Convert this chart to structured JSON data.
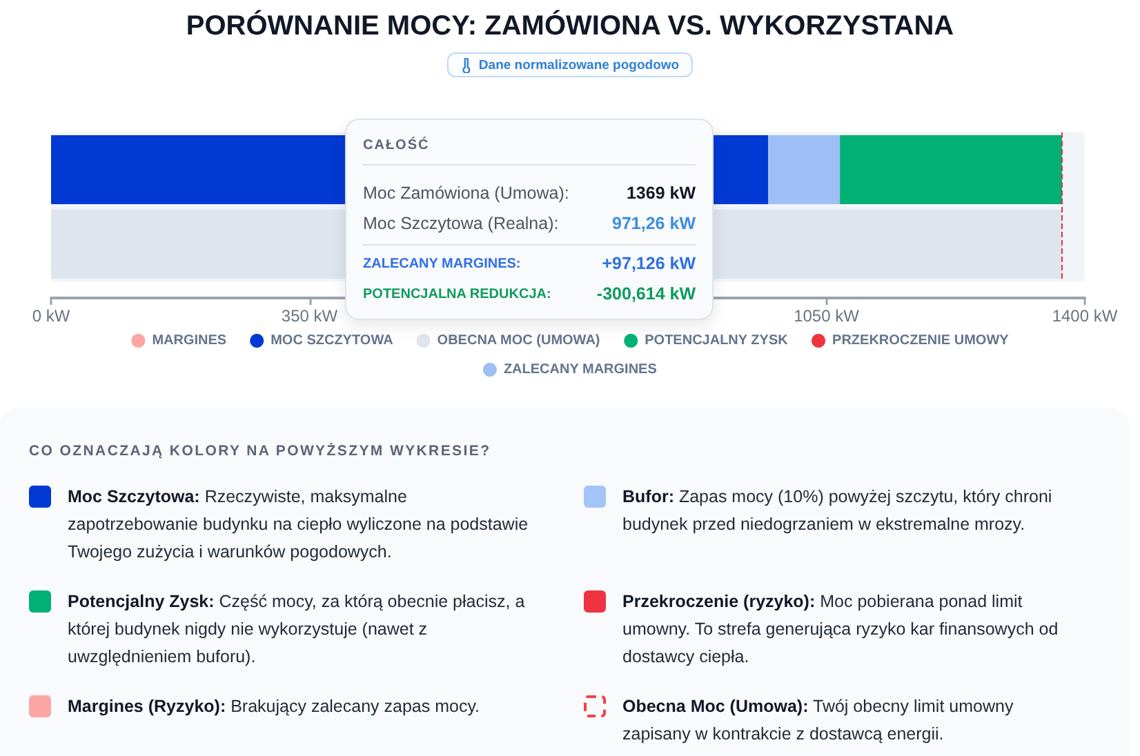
{
  "chart_data": [
    {
      "type": "bar",
      "title": "PORÓWNANIE MOCY: ZAMÓWIONA VS. WYKORZYSTANA",
      "subtitle": "Dane normalizowane pogodowo",
      "orientation": "horizontal",
      "stacked": true,
      "categories": [
        null,
        null
      ],
      "series": [
        {
          "name": "MARGINES",
          "color": "#fca5a5",
          "values": [
            null,
            null
          ]
        },
        {
          "name": "MOC SZCZYTOWA",
          "color": "#0039d4",
          "values": [
            971.26,
            null
          ]
        },
        {
          "name": "OBECNA MOC (UMOWA)",
          "color": "#dfe5ed",
          "values": [
            null,
            1369
          ]
        },
        {
          "name": "ZALECANY MARGINES",
          "color": "#9dbff5",
          "values": [
            97.126,
            null
          ]
        },
        {
          "name": "POTENCJALNY ZYSK",
          "color": "#00b074",
          "values": [
            300.614,
            null
          ]
        },
        {
          "name": "PRZEKROCZENIE UMOWY",
          "color": "#ef3340",
          "values": [
            null,
            null
          ]
        }
      ],
      "xlim": [
        0,
        1400
      ],
      "xticks": [
        {
          "value": 0,
          "label": "0 kW"
        },
        {
          "value": 350,
          "label": "350 kW"
        },
        {
          "value": 1050,
          "label": "1050 kW"
        },
        {
          "value": 1400,
          "label": "1400 kW"
        }
      ],
      "ref_lines": [
        {
          "axis": "x",
          "value": 1369,
          "color": "#e0303a",
          "line_style": "dashed"
        }
      ],
      "legend": "bottom",
      "annotations": [
        "CAŁOŚĆ",
        "Moc Zamówiona (Umowa):",
        "1369 kW",
        "Moc Szczytowa (Realna):",
        "971,26 kW",
        "ZALECANY MARGINES:",
        "+97,126 kW",
        "POTENCJALNA REDUKCJA:",
        "-300,614 kW"
      ]
    },
    {
      "type": "other",
      "title": "CO OZNACZAJĄ KOLORY NA POWYŻSZYM WYKRESIE?",
      "annotations": [
        "Moc Szczytowa: Rzeczywiste, maksymalne zapotrzebowanie budynku na ciepło wyliczone na podstawie Twojego zużycia i warunków pogodowych.",
        "Bufor: Zapas mocy (10%) powyżej szczytu, który chroni budynek przed niedogrzaniem w ekstremalne mrozy.",
        "Potencjalny Zysk: Część mocy, za którą obecnie płacisz, a której budynek nigdy nie wykorzystuje (nawet z uwzględnieniem buforu).",
        "Przekroczenie (ryzyko): Moc pobierana ponad limit umowny. To strefa generująca ryzyko kar finansowych od dostawcy ciepła.",
        "Margines (Ryzyko): Brakujący zalecany zapas mocy.",
        "Obecna Moc (Umowa): Twój obecny limit umowny zapisany w kontrakcie z dostawcą energii."
      ]
    }
  ]
}
